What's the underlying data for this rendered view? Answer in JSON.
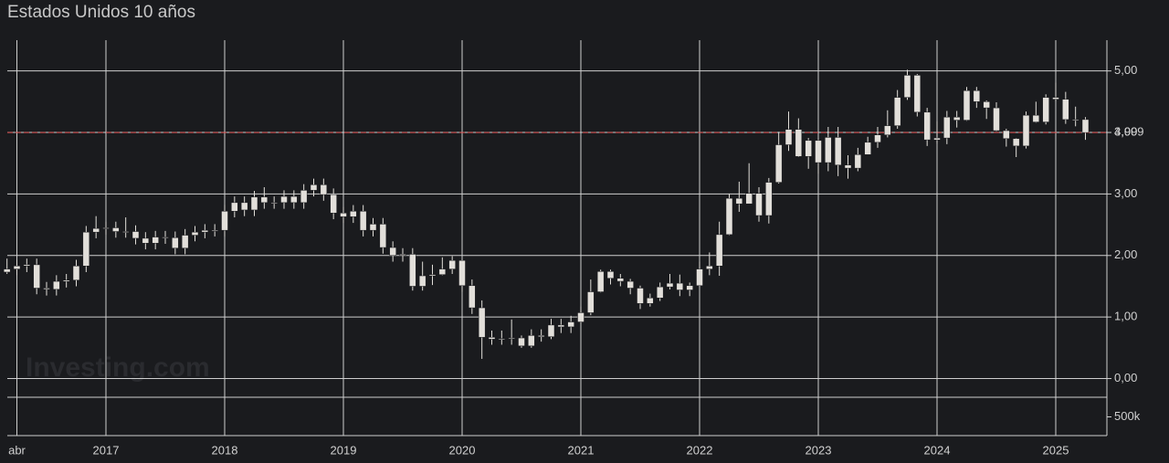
{
  "chart_data": {
    "type": "candlestick",
    "title": "Estados Unidos 10 años",
    "watermark": "Investing.com",
    "categories": [
      null,
      "abr",
      null,
      null,
      null,
      null,
      null,
      null,
      null,
      null,
      "2017",
      null,
      null,
      null,
      null,
      null,
      null,
      null,
      null,
      null,
      null,
      null,
      "2018",
      null,
      null,
      null,
      null,
      null,
      null,
      null,
      null,
      null,
      null,
      null,
      "2019",
      null,
      null,
      null,
      null,
      null,
      null,
      null,
      null,
      null,
      null,
      null,
      "2020",
      null,
      null,
      null,
      null,
      null,
      null,
      null,
      null,
      null,
      null,
      null,
      "2021",
      null,
      null,
      null,
      null,
      null,
      null,
      null,
      null,
      null,
      null,
      null,
      "2022",
      null,
      null,
      null,
      null,
      null,
      null,
      null,
      null,
      null,
      null,
      null,
      "2023",
      null,
      null,
      null,
      null,
      null,
      null,
      null,
      null,
      null,
      null,
      null,
      "2024",
      null,
      null,
      null,
      null,
      null,
      null,
      null,
      null,
      null,
      null,
      null,
      "2025",
      null,
      null,
      null
    ],
    "open": [
      1.73,
      1.78,
      1.83,
      1.85,
      1.47,
      1.45,
      1.58,
      1.6,
      1.83,
      2.38,
      2.44,
      2.45,
      2.39,
      2.39,
      2.28,
      2.2,
      2.3,
      2.29,
      2.12,
      2.33,
      2.38,
      2.41,
      2.41,
      2.72,
      2.86,
      2.74,
      2.95,
      2.86,
      2.86,
      2.96,
      2.86,
      3.06,
      3.15,
      2.99,
      2.69,
      2.63,
      2.72,
      2.41,
      2.51,
      2.13,
      2.0,
      2.02,
      1.5,
      1.67,
      1.69,
      1.78,
      1.92,
      1.51,
      1.15,
      0.67,
      0.64,
      0.65,
      0.66,
      0.53,
      0.7,
      0.68,
      0.87,
      0.84,
      0.92,
      1.07,
      1.41,
      1.74,
      1.63,
      1.58,
      1.47,
      1.22,
      1.31,
      1.49,
      1.55,
      1.44,
      1.51,
      1.78,
      1.83,
      2.34,
      2.93,
      2.84,
      3.01,
      2.65,
      3.19,
      3.8,
      4.05,
      3.61,
      3.87,
      3.51,
      3.92,
      3.47,
      3.42,
      3.64,
      3.84,
      3.96,
      4.11,
      4.57,
      4.93,
      4.33,
      3.88,
      3.91,
      4.25,
      4.2,
      4.68,
      4.5,
      4.4,
      4.03,
      3.9,
      3.78,
      4.28,
      4.17,
      4.57,
      4.54,
      4.21,
      4.21
    ],
    "high": [
      1.95,
      1.93,
      1.95,
      1.95,
      1.57,
      1.68,
      1.7,
      1.93,
      2.48,
      2.64,
      2.55,
      2.55,
      2.62,
      2.49,
      2.38,
      2.4,
      2.4,
      2.39,
      2.43,
      2.48,
      2.51,
      2.51,
      2.82,
      2.96,
      2.96,
      3.05,
      3.11,
      2.96,
      3.06,
      3.06,
      3.16,
      3.25,
      3.25,
      3.09,
      2.79,
      2.82,
      2.82,
      2.61,
      2.61,
      2.23,
      2.12,
      2.12,
      1.9,
      1.85,
      1.97,
      1.99,
      1.94,
      1.61,
      1.27,
      0.78,
      0.78,
      0.96,
      0.7,
      0.8,
      0.8,
      0.97,
      0.97,
      1.02,
      1.17,
      1.61,
      1.77,
      1.77,
      1.7,
      1.62,
      1.51,
      1.38,
      1.56,
      1.7,
      1.69,
      1.56,
      1.9,
      2.05,
      2.55,
      3.0,
      3.2,
      3.5,
      3.11,
      3.26,
      4.01,
      4.34,
      4.23,
      3.91,
      3.9,
      4.09,
      4.09,
      3.63,
      3.75,
      3.93,
      4.09,
      4.36,
      4.69,
      5.02,
      4.95,
      4.4,
      4.18,
      4.35,
      4.35,
      4.74,
      4.74,
      4.52,
      4.49,
      4.06,
      3.91,
      4.34,
      4.5,
      4.62,
      4.81,
      4.66,
      4.42,
      4.25
    ],
    "low": [
      1.7,
      1.68,
      1.73,
      1.37,
      1.35,
      1.35,
      1.48,
      1.5,
      1.73,
      2.28,
      2.34,
      2.29,
      2.29,
      2.18,
      2.1,
      2.1,
      2.19,
      2.02,
      2.02,
      2.23,
      2.28,
      2.31,
      2.31,
      2.62,
      2.64,
      2.64,
      2.76,
      2.76,
      2.76,
      2.76,
      2.76,
      2.96,
      2.89,
      2.59,
      2.53,
      2.53,
      2.31,
      2.31,
      2.03,
      1.9,
      1.9,
      1.43,
      1.43,
      1.52,
      1.68,
      1.7,
      1.41,
      1.05,
      0.32,
      0.55,
      0.55,
      0.55,
      0.5,
      0.5,
      0.6,
      0.64,
      0.74,
      0.74,
      0.9,
      1.03,
      1.4,
      1.53,
      1.5,
      1.37,
      1.13,
      1.17,
      1.26,
      1.45,
      1.34,
      1.34,
      1.49,
      1.68,
      1.67,
      2.33,
      2.71,
      2.84,
      2.55,
      2.52,
      3.17,
      3.7,
      3.6,
      3.41,
      3.33,
      3.37,
      3.29,
      3.25,
      3.37,
      3.64,
      3.75,
      3.92,
      4.06,
      4.53,
      4.26,
      3.78,
      3.82,
      3.81,
      4.08,
      4.19,
      4.4,
      4.22,
      4.02,
      3.77,
      3.6,
      3.74,
      4.16,
      4.13,
      4.51,
      4.14,
      4.1,
      3.88
    ],
    "close": [
      1.78,
      1.83,
      1.85,
      1.47,
      1.45,
      1.58,
      1.6,
      1.83,
      2.38,
      2.44,
      2.45,
      2.39,
      2.39,
      2.28,
      2.2,
      2.3,
      2.29,
      2.12,
      2.33,
      2.38,
      2.41,
      2.41,
      2.72,
      2.86,
      2.74,
      2.95,
      2.86,
      2.86,
      2.96,
      2.86,
      3.06,
      3.15,
      2.99,
      2.69,
      2.63,
      2.72,
      2.41,
      2.51,
      2.13,
      2.0,
      2.02,
      1.5,
      1.67,
      1.69,
      1.78,
      1.92,
      1.51,
      1.15,
      0.67,
      0.64,
      0.65,
      0.66,
      0.53,
      0.7,
      0.68,
      0.87,
      0.84,
      0.92,
      1.07,
      1.41,
      1.74,
      1.63,
      1.58,
      1.47,
      1.22,
      1.31,
      1.49,
      1.55,
      1.44,
      1.51,
      1.78,
      1.83,
      2.34,
      2.93,
      2.84,
      3.01,
      2.65,
      3.19,
      3.8,
      4.05,
      3.61,
      3.87,
      3.51,
      3.92,
      3.47,
      3.42,
      3.64,
      3.84,
      3.96,
      4.11,
      4.57,
      4.93,
      4.33,
      3.88,
      3.91,
      4.25,
      4.2,
      4.68,
      4.5,
      4.4,
      4.03,
      3.9,
      3.78,
      4.28,
      4.17,
      4.57,
      4.54,
      4.21,
      4.21,
      3.999
    ],
    "color": "#e2dfda",
    "last_value": {
      "value": 3.999,
      "label": "3,999"
    },
    "last_line_color": "#e05050",
    "ylim": [
      -0.2,
      5.5
    ],
    "yticks": [
      {
        "value": 0,
        "label": "0,00"
      },
      {
        "value": 1,
        "label": "1,00"
      },
      {
        "value": 2,
        "label": "2,00"
      },
      {
        "value": 3,
        "label": "3,00"
      },
      {
        "value": 4,
        "label": "4,00"
      },
      {
        "value": 5,
        "label": "5,00"
      }
    ],
    "y2lim": [
      0,
      1000000
    ],
    "y2ticks": [
      {
        "value": 500000,
        "label": "500k"
      }
    ],
    "grid": true
  }
}
